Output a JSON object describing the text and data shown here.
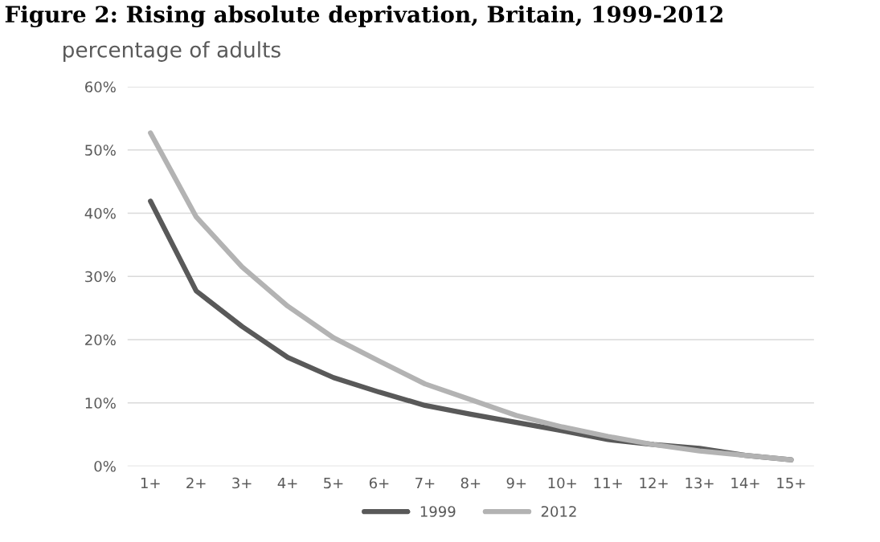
{
  "chart_data": {
    "type": "line",
    "title": "Figure 2: Rising absolute deprivation, Britain, 1999-2012",
    "ylabel": "percentage of adults",
    "categories": [
      "1+",
      "2+",
      "3+",
      "4+",
      "5+",
      "6+",
      "7+",
      "8+",
      "9+",
      "10+",
      "11+",
      "12+",
      "13+",
      "14+",
      "15+"
    ],
    "series": [
      {
        "name": "1999",
        "color": "#595959",
        "values": [
          41.9,
          27.7,
          22.1,
          17.2,
          14.0,
          11.7,
          9.6,
          8.2,
          6.9,
          5.6,
          4.2,
          3.4,
          2.8,
          1.7,
          1.0
        ]
      },
      {
        "name": "2012",
        "color": "#b3b3b3",
        "values": [
          52.7,
          39.4,
          31.5,
          25.3,
          20.3,
          16.6,
          13.0,
          10.5,
          8.0,
          6.2,
          4.7,
          3.4,
          2.4,
          1.7,
          1.0
        ]
      }
    ],
    "ylim": [
      0,
      60
    ],
    "yticks": [
      {
        "value": 0,
        "label": "0%"
      },
      {
        "value": 10,
        "label": "10%"
      },
      {
        "value": 20,
        "label": "20%"
      },
      {
        "value": 30,
        "label": "30%"
      },
      {
        "value": 40,
        "label": "40%"
      },
      {
        "value": 50,
        "label": "50%"
      },
      {
        "value": 60,
        "label": "60%"
      }
    ],
    "grid": "y",
    "legend": "bottom",
    "marker": "none",
    "line_style": "solid"
  }
}
